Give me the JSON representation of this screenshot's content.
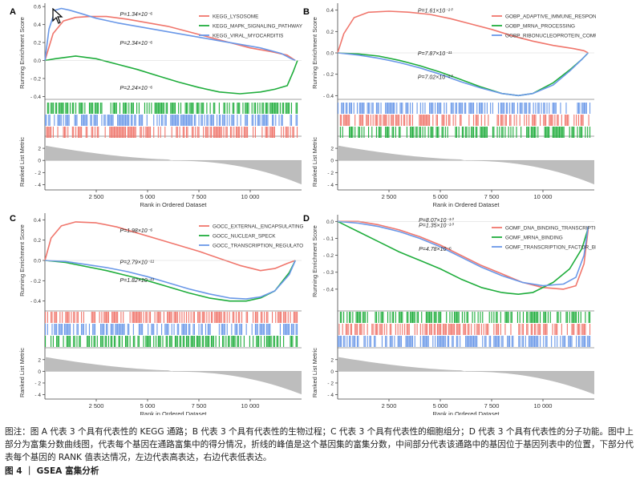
{
  "caption": {
    "note": "图注：图 A 代表 3 个具有代表性的 KEGG 通路；B 代表 3 个具有代表性的生物过程；C 代表 3 个具有代表性的细胞组分；D 代表 3 个具有代表性的分子功能。图中上部分为富集分数曲线图，代表每个基因在通路富集中的得分情况，折线的峰值是这个基因集的富集分数，中间部分代表该通路中的基因位于基因列表中的位置，下部分代表每个基因的 RANK 值表达情况，左边代表高表达，右边代表低表达。",
    "figure_title": "图 4 ｜ GSEA 富集分析"
  },
  "colors": {
    "red": "#f0766c",
    "green": "#1fad3c",
    "blue": "#6a98e8",
    "gray": "#9e9e9e"
  },
  "cursor_icon": "mouse-pointer-icon",
  "chart_data": [
    {
      "type": "line",
      "panel": "A",
      "ylabel": "Running Enrichment Score",
      "ylabel2": "Ranked List Metric",
      "xlabel": "Rank in Ordered Dataset",
      "xlim": [
        0,
        12500
      ],
      "ylim": [
        -0.45,
        0.62
      ],
      "ylim_metric": [
        -4.2,
        3.2
      ],
      "x_ticks": [
        2500,
        5000,
        7500,
        10000
      ],
      "x_tick_labels": [
        "2 500",
        "5 000",
        "7 500",
        "10 000"
      ],
      "y_ticks": [
        -0.4,
        -0.2,
        0.0,
        0.2,
        0.4,
        0.6
      ],
      "y_tick_labels": [
        "- 0.4",
        "- 0.2",
        "0.0",
        "0.2",
        "0.4",
        "0.6"
      ],
      "metric_ticks": [
        -4,
        -2,
        0,
        2
      ],
      "metric_tick_labels": [
        "- 4",
        "- 2",
        "0",
        "2"
      ],
      "legend_position": "top-right",
      "series": [
        {
          "name": "KEGG_LYSOSOME",
          "color": "red",
          "x": [
            0,
            400,
            900,
            1500,
            2200,
            3000,
            4000,
            5000,
            6000,
            7000,
            8000,
            9000,
            10000,
            11000,
            11800,
            12200
          ],
          "y": [
            0.0,
            0.3,
            0.44,
            0.48,
            0.49,
            0.49,
            0.46,
            0.42,
            0.38,
            0.32,
            0.26,
            0.2,
            0.14,
            0.1,
            0.06,
            0.0
          ]
        },
        {
          "name": "KEGG_MAPK_SIGNALING_PATHWAY",
          "color": "green",
          "x": [
            0,
            500,
            1500,
            2500,
            3500,
            4500,
            5500,
            6500,
            7500,
            8500,
            9500,
            10500,
            11200,
            11800,
            12100,
            12300
          ],
          "y": [
            0.0,
            0.02,
            0.05,
            0.02,
            -0.04,
            -0.1,
            -0.17,
            -0.24,
            -0.3,
            -0.35,
            -0.37,
            -0.35,
            -0.32,
            -0.28,
            -0.12,
            0.0
          ]
        },
        {
          "name": "KEGG_VIRAL_MYOCARDITIS",
          "color": "blue",
          "x": [
            0,
            200,
            500,
            800,
            1200,
            1800,
            2500,
            3500,
            4500,
            5500,
            6500,
            7500,
            8500,
            9500,
            10500,
            11500,
            12000,
            12200
          ],
          "y": [
            0.0,
            0.35,
            0.56,
            0.58,
            0.56,
            0.52,
            0.47,
            0.42,
            0.38,
            0.34,
            0.3,
            0.26,
            0.22,
            0.18,
            0.14,
            0.08,
            0.02,
            0.0
          ]
        }
      ],
      "annotations": [
        {
          "label": "P=1.34×10⁻⁶",
          "x": 3650,
          "y": 0.52
        },
        {
          "label": "P=2.34×10⁻⁶",
          "x": 3650,
          "y": 0.2
        },
        {
          "label": "P=2.24×10⁻⁶",
          "x": 3650,
          "y": -0.3
        }
      ]
    },
    {
      "type": "line",
      "panel": "B",
      "ylabel": "Running Enrichment Score",
      "ylabel2": "Ranked List Metric",
      "xlabel": "Rank in Ordered Dataset",
      "xlim": [
        0,
        12500
      ],
      "ylim": [
        -0.45,
        0.45
      ],
      "ylim_metric": [
        -4.2,
        3.2
      ],
      "x_ticks": [
        2500,
        5000,
        7500,
        10000
      ],
      "x_tick_labels": [
        "2 500",
        "5 000",
        "7 500",
        "10 000"
      ],
      "y_ticks": [
        -0.4,
        -0.2,
        0.0,
        0.2,
        0.4
      ],
      "y_tick_labels": [
        "- 0.4",
        "- 0.2",
        "0.0",
        "0.2",
        "0.4"
      ],
      "metric_ticks": [
        -4,
        -2,
        0,
        2
      ],
      "metric_tick_labels": [
        "- 4",
        "- 2",
        "0",
        "2"
      ],
      "legend_position": "top-right",
      "series": [
        {
          "name": "GOBP_ADAPTIVE_IMMUNE_RESPONSE",
          "color": "red",
          "x": [
            0,
            300,
            800,
            1500,
            2500,
            3500,
            4500,
            5500,
            6500,
            7500,
            8500,
            9500,
            10500,
            11500,
            12000,
            12200
          ],
          "y": [
            0.0,
            0.18,
            0.33,
            0.38,
            0.39,
            0.38,
            0.36,
            0.32,
            0.27,
            0.22,
            0.16,
            0.11,
            0.07,
            0.04,
            0.02,
            0.0
          ]
        },
        {
          "name": "GOBP_MRNA_PROCESSING",
          "color": "green",
          "x": [
            0,
            1000,
            2000,
            3000,
            4000,
            5000,
            6000,
            7000,
            8000,
            8800,
            9500,
            10500,
            11300,
            11900,
            12200
          ],
          "y": [
            0.0,
            -0.01,
            -0.03,
            -0.07,
            -0.12,
            -0.18,
            -0.25,
            -0.32,
            -0.38,
            -0.4,
            -0.38,
            -0.28,
            -0.16,
            -0.06,
            0.0
          ]
        },
        {
          "name": "GOBP_RIBONUCLEOPROTEIN_COMPLEX_BIOGENESIS",
          "color": "blue",
          "x": [
            0,
            1000,
            2000,
            3000,
            4000,
            5000,
            6000,
            7000,
            8000,
            8800,
            9500,
            10500,
            11300,
            11900,
            12200
          ],
          "y": [
            0.0,
            -0.02,
            -0.05,
            -0.09,
            -0.14,
            -0.2,
            -0.27,
            -0.33,
            -0.38,
            -0.4,
            -0.38,
            -0.3,
            -0.17,
            -0.06,
            0.0
          ]
        }
      ],
      "annotations": [
        {
          "label": "P=1.61×10⁻¹⁰",
          "x": 3900,
          "y": 0.4
        },
        {
          "label": "P=7.87×10⁻¹¹",
          "x": 3900,
          "y": 0.0
        },
        {
          "label": "P=7.02×10⁻¹⁰",
          "x": 3900,
          "y": -0.22
        }
      ]
    },
    {
      "type": "line",
      "panel": "C",
      "ylabel": "Running Enrichment Score",
      "ylabel2": "Ranked List Metric",
      "xlabel": "Rank in Ordered Dataset",
      "xlim": [
        0,
        12500
      ],
      "ylim": [
        -0.45,
        0.45
      ],
      "ylim_metric": [
        -4.2,
        3.2
      ],
      "x_ticks": [
        2500,
        5000,
        7500,
        10000
      ],
      "x_tick_labels": [
        "2 500",
        "5 000",
        "7 500",
        "10 000"
      ],
      "y_ticks": [
        -0.4,
        -0.2,
        0.0,
        0.2,
        0.4
      ],
      "y_tick_labels": [
        "- 0.4",
        "- 0.2",
        "0.0",
        "0.2",
        "0.4"
      ],
      "metric_ticks": [
        -4,
        -2,
        0,
        2
      ],
      "metric_tick_labels": [
        "- 4",
        "- 2",
        "0",
        "2"
      ],
      "legend_position": "top-right",
      "series": [
        {
          "name": "GOCC_EXTERNAL_ENCAPSULATING_STRUCTURE",
          "color": "red",
          "x": [
            0,
            300,
            800,
            1500,
            2500,
            3500,
            4500,
            5500,
            6500,
            7500,
            8500,
            9500,
            10500,
            11200,
            11800,
            12200
          ],
          "y": [
            0.0,
            0.22,
            0.34,
            0.38,
            0.37,
            0.33,
            0.27,
            0.21,
            0.15,
            0.09,
            0.02,
            -0.05,
            -0.1,
            -0.08,
            -0.03,
            0.0
          ]
        },
        {
          "name": "GOCC_NUCLEAR_SPECK",
          "color": "green",
          "x": [
            0,
            1000,
            2000,
            3000,
            4000,
            5000,
            6000,
            7000,
            8000,
            9000,
            9800,
            10500,
            11200,
            11900,
            12200
          ],
          "y": [
            0.0,
            -0.02,
            -0.06,
            -0.1,
            -0.15,
            -0.2,
            -0.26,
            -0.32,
            -0.37,
            -0.4,
            -0.4,
            -0.37,
            -0.3,
            -0.12,
            0.0
          ]
        },
        {
          "name": "GOCC_TRANSCRIPTION_REGULATOR_COMPLEX",
          "color": "blue",
          "x": [
            0,
            1000,
            2000,
            3000,
            4000,
            5000,
            6000,
            7000,
            8000,
            9000,
            9800,
            10500,
            11200,
            11900,
            12200
          ],
          "y": [
            0.0,
            -0.01,
            -0.04,
            -0.07,
            -0.11,
            -0.16,
            -0.22,
            -0.28,
            -0.33,
            -0.37,
            -0.38,
            -0.36,
            -0.3,
            -0.14,
            0.0
          ]
        }
      ],
      "annotations": [
        {
          "label": "P=1.98×10⁻⁶",
          "x": 3650,
          "y": 0.3
        },
        {
          "label": "P=2.79×10⁻¹¹",
          "x": 3650,
          "y": -0.01
        },
        {
          "label": "P=1.82×10⁻¹¹",
          "x": 3650,
          "y": -0.19
        }
      ]
    },
    {
      "type": "line",
      "panel": "D",
      "ylabel": "Running Enrichment Score",
      "ylabel2": "Ranked List Metric",
      "xlabel": "Rank in Ordered Dataset",
      "xlim": [
        0,
        12500
      ],
      "ylim": [
        -0.5,
        0.03
      ],
      "ylim_metric": [
        -4.2,
        3.2
      ],
      "x_ticks": [
        2500,
        5000,
        7500,
        10000
      ],
      "x_tick_labels": [
        "2 500",
        "5 000",
        "7 500",
        "10 000"
      ],
      "y_ticks": [
        -0.4,
        -0.3,
        -0.2,
        -0.1,
        0.0
      ],
      "y_tick_labels": [
        "- 0.4",
        "- 0.3",
        "- 0.2",
        "- 0.1",
        "0.0"
      ],
      "metric_ticks": [
        -4,
        -2,
        0,
        2
      ],
      "metric_tick_labels": [
        "- 4",
        "- 2",
        "0",
        "2"
      ],
      "legend_position": "top-right",
      "series": [
        {
          "name": "GOMF_DNA_BINDING_TRANSCRIPTION_ACTIVATOR_ACTIVITY",
          "color": "red",
          "x": [
            0,
            1000,
            2000,
            3000,
            4000,
            5000,
            6000,
            7000,
            8000,
            9000,
            10000,
            11000,
            11600,
            12000,
            12200
          ],
          "y": [
            0.0,
            0.0,
            -0.02,
            -0.05,
            -0.09,
            -0.14,
            -0.2,
            -0.26,
            -0.31,
            -0.36,
            -0.39,
            -0.4,
            -0.38,
            -0.25,
            -0.05
          ]
        },
        {
          "name": "GOMF_MRNA_BINDING",
          "color": "green",
          "x": [
            0,
            500,
            1000,
            2000,
            3000,
            4000,
            5000,
            6000,
            7000,
            8000,
            8800,
            9500,
            10500,
            11300,
            11900,
            12200
          ],
          "y": [
            0.0,
            -0.03,
            -0.06,
            -0.12,
            -0.18,
            -0.23,
            -0.28,
            -0.34,
            -0.39,
            -0.42,
            -0.43,
            -0.42,
            -0.36,
            -0.28,
            -0.16,
            -0.04
          ]
        },
        {
          "name": "GOMF_TRANSCRIPTION_FACTOR_BINDING",
          "color": "blue",
          "x": [
            0,
            1000,
            2000,
            3000,
            4000,
            5000,
            6000,
            7000,
            8000,
            9000,
            10000,
            11000,
            11600,
            12000,
            12200
          ],
          "y": [
            0.0,
            -0.01,
            -0.03,
            -0.06,
            -0.1,
            -0.15,
            -0.21,
            -0.27,
            -0.32,
            -0.36,
            -0.38,
            -0.37,
            -0.33,
            -0.2,
            -0.03
          ]
        }
      ],
      "annotations": [
        {
          "label": "P=8.07×10⁻¹⁰",
          "x": 3950,
          "y": 0.01
        },
        {
          "label": "P=1.35×10⁻¹⁰",
          "x": 3950,
          "y": -0.02
        },
        {
          "label": "P=4.78×10⁻⁶",
          "x": 3950,
          "y": -0.16
        }
      ]
    }
  ]
}
